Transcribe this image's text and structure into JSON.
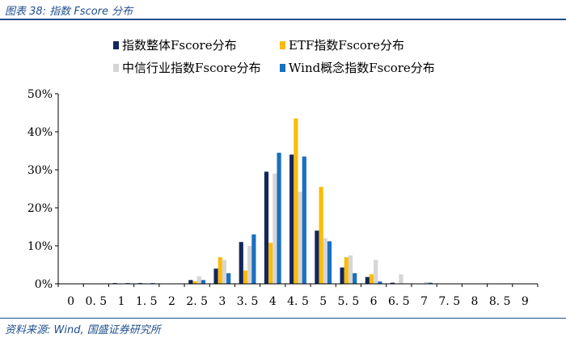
{
  "header": {
    "title": "图表 38:  指数 Fscore 分布"
  },
  "footer": {
    "source": "资料来源: Wind, 国盛证券研究所"
  },
  "colors": {
    "rule": "#1f4e8c"
  },
  "chart_data": {
    "type": "bar",
    "title": "",
    "xlabel": "",
    "ylabel": "",
    "categories": [
      "0",
      "0.5",
      "1",
      "1.5",
      "2",
      "2.5",
      "3",
      "3.5",
      "4",
      "4.5",
      "5",
      "5.5",
      "6",
      "6.5",
      "7",
      "7.5",
      "8",
      "8.5",
      "9"
    ],
    "tick_labels": [
      "0",
      "0. 5",
      "1",
      "1. 5",
      "2",
      "2. 5",
      "3",
      "3. 5",
      "4",
      "4. 5",
      "5",
      "5. 5",
      "6",
      "6. 5",
      "7",
      "7. 5",
      "8",
      "8. 5",
      "9"
    ],
    "ylim": [
      0,
      50
    ],
    "yticks": [
      0,
      10,
      20,
      30,
      40,
      50
    ],
    "ytick_labels": [
      "0%",
      "10%",
      "20%",
      "30%",
      "40%",
      "50%"
    ],
    "value_unit": "%",
    "grid": false,
    "legend_position": "top",
    "series": [
      {
        "name": "指数整体Fscore分布",
        "color": "#13275c",
        "values": [
          0,
          0,
          0.2,
          0.2,
          0,
          1,
          4,
          11,
          29.5,
          34,
          14,
          4.3,
          1.8,
          0.3,
          0,
          0,
          0,
          0,
          0
        ]
      },
      {
        "name": "ETF指数Fscore分布",
        "color": "#fcbb06",
        "values": [
          0,
          0,
          0,
          0,
          0,
          0.7,
          7,
          3.5,
          10.8,
          43.5,
          25.5,
          7,
          2.5,
          0,
          0,
          0,
          0,
          0,
          0
        ]
      },
      {
        "name": "中信行业指数Fscore分布",
        "color": "#d6d6d6",
        "values": [
          0,
          0,
          0,
          0,
          0,
          2,
          6.3,
          10,
          29,
          24.2,
          12,
          7.5,
          6.3,
          2.5,
          0.5,
          0,
          0,
          0,
          0
        ]
      },
      {
        "name": "Wind概念指数Fscore分布",
        "color": "#1a70c1",
        "values": [
          0,
          0,
          0.2,
          0.2,
          0,
          1,
          2.8,
          13,
          34.5,
          33.5,
          11.2,
          2.8,
          0.6,
          0,
          0.3,
          0,
          0,
          0,
          0
        ]
      }
    ]
  }
}
